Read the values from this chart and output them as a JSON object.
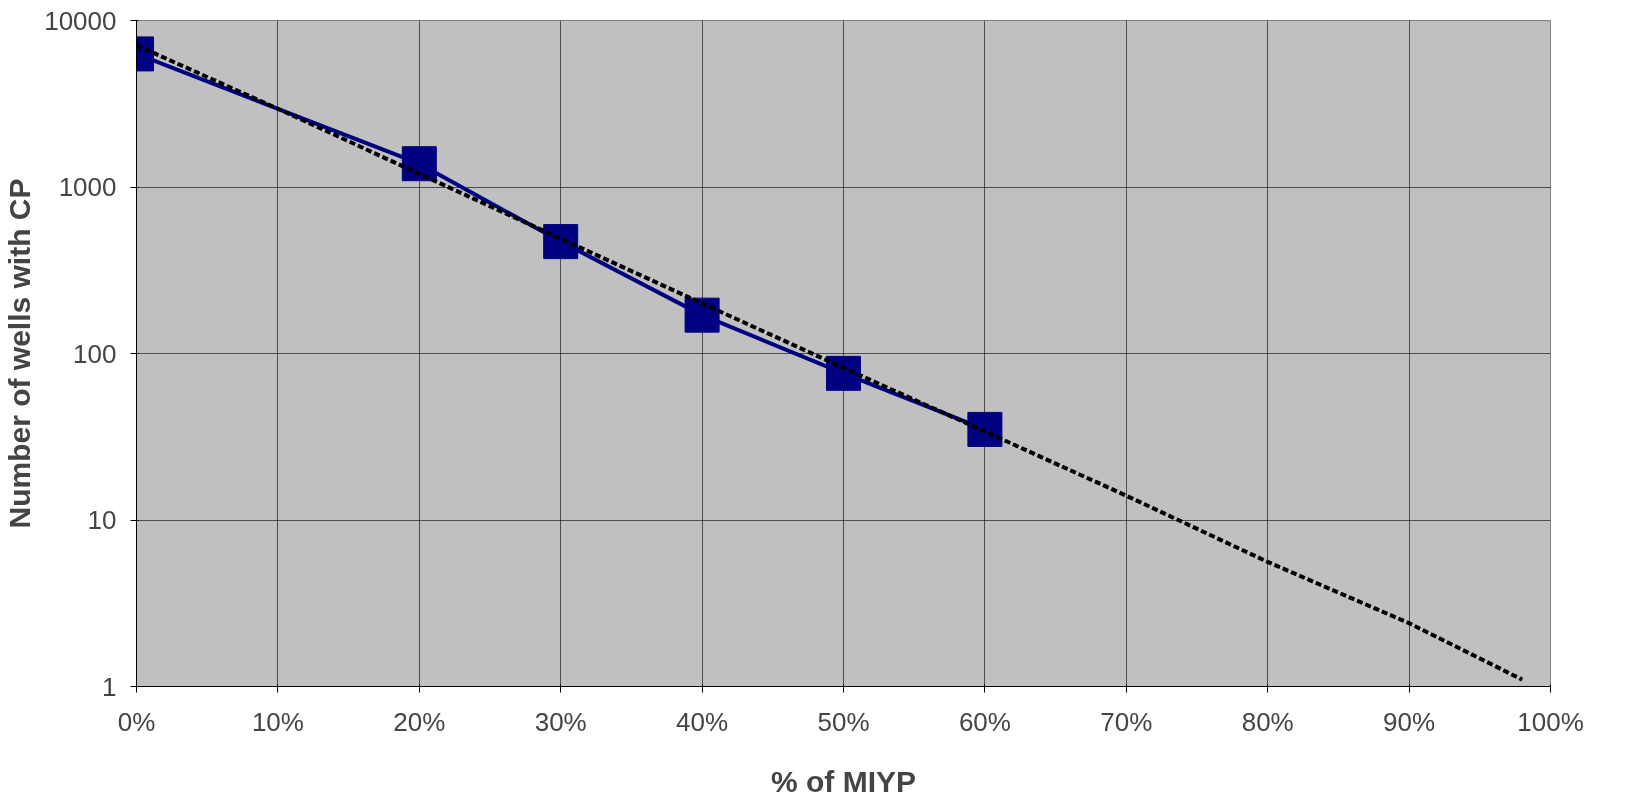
{
  "chart_data": {
    "type": "line",
    "xlabel": "% of MIYP",
    "ylabel": "Number of wells with CP",
    "log": "y",
    "grid": true,
    "xlim": [
      0,
      100
    ],
    "xticks": [
      {
        "value": 0,
        "label": "0%"
      },
      {
        "value": 10,
        "label": "10%"
      },
      {
        "value": 20,
        "label": "20%"
      },
      {
        "value": 30,
        "label": "30%"
      },
      {
        "value": 40,
        "label": "40%"
      },
      {
        "value": 50,
        "label": "50%"
      },
      {
        "value": 60,
        "label": "60%"
      },
      {
        "value": 70,
        "label": "70%"
      },
      {
        "value": 80,
        "label": "80%"
      },
      {
        "value": 90,
        "label": "90%"
      },
      {
        "value": 100,
        "label": "100%"
      }
    ],
    "ylim": [
      1,
      10000
    ],
    "yticks": [
      1,
      10,
      100,
      1000,
      10000
    ],
    "series": [
      {
        "color": "#000080",
        "marker": "square",
        "line_style": "solid",
        "x": [
          0,
          20,
          30,
          40,
          50,
          60
        ],
        "values": [
          6300,
          1380,
          470,
          170,
          76,
          35
        ]
      },
      {
        "color": "#000000",
        "marker": "none",
        "line_style": "dashed",
        "x": [
          0,
          10,
          20,
          30,
          40,
          50,
          60,
          70,
          80,
          90,
          98
        ],
        "values": [
          7100,
          2950,
          1200,
          490,
          200,
          82,
          34,
          14,
          5.6,
          2.4,
          1.1
        ]
      }
    ]
  }
}
